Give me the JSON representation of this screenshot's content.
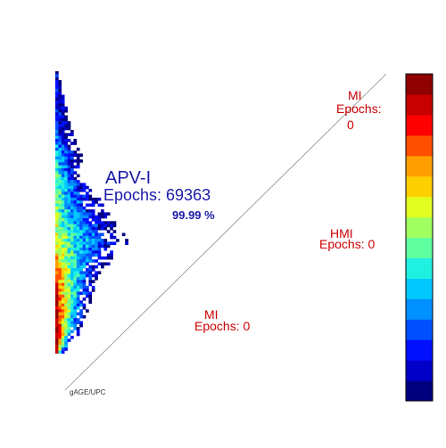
{
  "chart_data": {
    "type": "heatmap",
    "title": "",
    "xlabel": "",
    "ylabel": "",
    "colorbar": {
      "colors": [
        "#00007f",
        "#0000c8",
        "#0010ff",
        "#0050ff",
        "#0090ff",
        "#00c8ff",
        "#20f0e0",
        "#60ffa0",
        "#a0ff60",
        "#e0ff20",
        "#ffd000",
        "#ffa000",
        "#ff5000",
        "#ff0000",
        "#c80000",
        "#8f0000"
      ]
    },
    "regions": {
      "main": {
        "name": "APV-I",
        "epochs_label": "Epochs: 69363",
        "percent": "99.99 %"
      },
      "mi_top": {
        "name": "MI",
        "epochs_label": "Epochs:",
        "epochs_value": "0"
      },
      "hmi": {
        "name": "HMI",
        "epochs_label": "Epochs: 0"
      },
      "mi_bottom": {
        "name": "MI",
        "epochs_label": "Epochs: 0"
      }
    },
    "credit": "gAGE/UPC",
    "density_profile": [
      {
        "y": 0.995,
        "extent": 0.02,
        "level": 0.1
      },
      {
        "y": 0.78,
        "extent": 0.12,
        "level": 0.2
      },
      {
        "y": 0.72,
        "extent": 0.18,
        "level": 0.35
      },
      {
        "y": 0.64,
        "extent": 0.2,
        "level": 0.45
      },
      {
        "y": 0.55,
        "extent": 0.32,
        "level": 0.5
      },
      {
        "y": 0.46,
        "extent": 0.45,
        "level": 0.55
      },
      {
        "y": 0.4,
        "extent": 0.55,
        "level": 0.6
      },
      {
        "y": 0.34,
        "extent": 0.42,
        "level": 0.7
      },
      {
        "y": 0.26,
        "extent": 0.3,
        "level": 0.85
      },
      {
        "y": 0.16,
        "extent": 0.24,
        "level": 0.95
      },
      {
        "y": 0.07,
        "extent": 0.16,
        "level": 1.0
      },
      {
        "y": 0.0,
        "extent": 0.05,
        "level": 0.9
      }
    ]
  }
}
